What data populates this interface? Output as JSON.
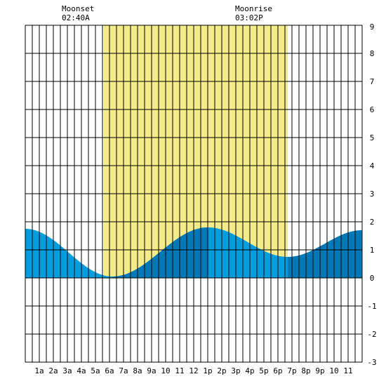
{
  "chart_data": {
    "type": "area",
    "title": "",
    "xlabel": "",
    "ylabel": "",
    "x_ticks": [
      "1a",
      "2a",
      "3a",
      "4a",
      "5a",
      "6a",
      "7a",
      "8a",
      "9a",
      "10",
      "11",
      "12",
      "1p",
      "2p",
      "3p",
      "4p",
      "5p",
      "6p",
      "7p",
      "8p",
      "9p",
      "10",
      "11"
    ],
    "y_ticks": [
      "9",
      "8",
      "7",
      "6",
      "5",
      "4",
      "3",
      "2",
      "1",
      "0",
      "-1",
      "-2",
      "-3"
    ],
    "xlim": [
      0,
      24
    ],
    "ylim": [
      -3,
      9
    ],
    "grid": true,
    "daylight": {
      "start_hour": 5.6,
      "end_hour": 18.7
    },
    "moon_events": [
      {
        "label": "Moonset",
        "time": "02:40A",
        "hour": 2.67
      },
      {
        "label": "Moonrise",
        "time": "03:02P",
        "hour": 15.03
      }
    ],
    "extrema": [
      {
        "hour": 0.0,
        "height": 1.75
      },
      {
        "hour": 6.2,
        "height": 0.05
      },
      {
        "hour": 13.0,
        "height": 1.8
      },
      {
        "hour": 18.7,
        "height": 0.75
      },
      {
        "hour": 24.0,
        "height": 1.7
      }
    ],
    "colors": {
      "daylight": "#f4ec8a",
      "rising": "#0079b8",
      "falling": "#009ddf",
      "grid": "#000000"
    }
  }
}
